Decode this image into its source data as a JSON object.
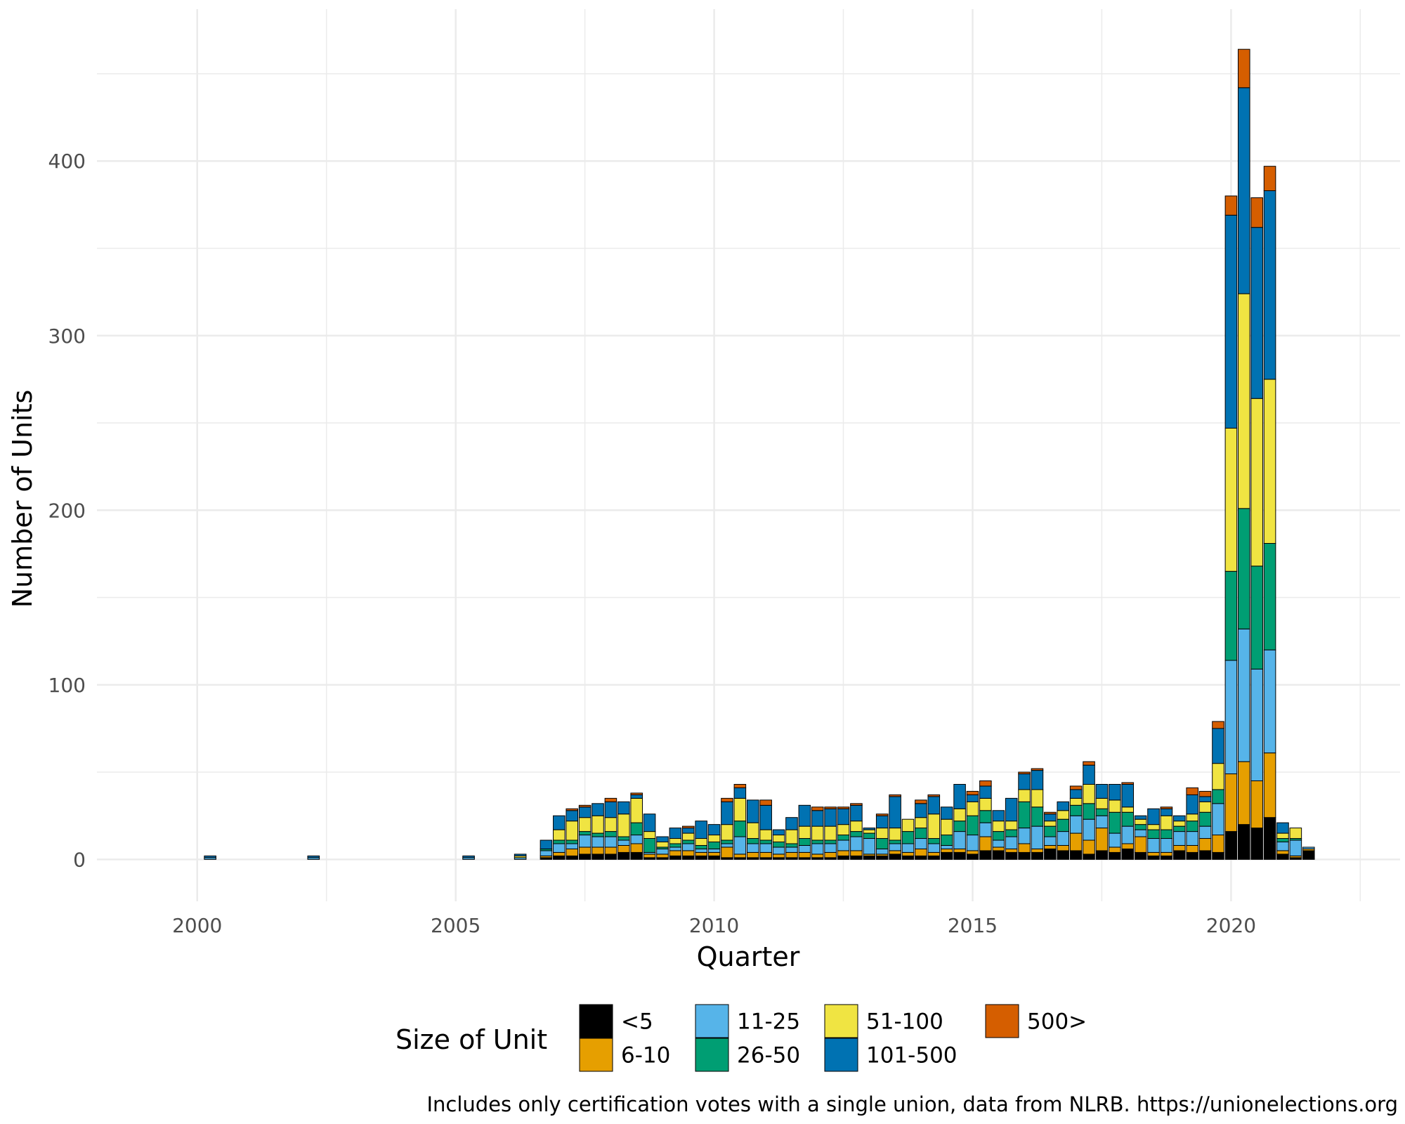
{
  "chart_data": {
    "type": "bar",
    "stacked": true,
    "xlabel": "Quarter",
    "ylabel": "Number of Units",
    "x_ticks": [
      "2000",
      "2005",
      "2010",
      "2015",
      "2020"
    ],
    "y_ticks": [
      "0",
      "100",
      "200",
      "300",
      "400"
    ],
    "xlim": [
      1998.06,
      2023.27
    ],
    "ylim": [
      -24,
      487
    ],
    "grid": true,
    "legend": {
      "title": "Size of Unit",
      "position": "bottom",
      "entries": [
        "<5",
        "6-10",
        "11-25",
        "26-50",
        "51-100",
        "101-500",
        "500>"
      ]
    },
    "caption": "Includes only certification votes with a single union, data from NLRB. https://unionelections.org",
    "colors": {
      "<5": "#000000",
      "6-10": "#E69F00",
      "11-25": "#56B4E9",
      "26-50": "#009E73",
      "51-100": "#F0E442",
      "101-500": "#0072B2",
      "500>": "#D55E00"
    },
    "x": [
      2000.25,
      2002.25,
      2005.25,
      2006.25,
      2006.75,
      2007.0,
      2007.25,
      2007.5,
      2007.75,
      2008.0,
      2008.25,
      2008.5,
      2008.75,
      2009.0,
      2009.25,
      2009.5,
      2009.75,
      2010.0,
      2010.25,
      2010.5,
      2010.75,
      2011.0,
      2011.25,
      2011.5,
      2011.75,
      2012.0,
      2012.25,
      2012.5,
      2012.75,
      2013.0,
      2013.25,
      2013.5,
      2013.75,
      2014.0,
      2014.25,
      2014.5,
      2014.75,
      2015.0,
      2015.25,
      2015.5,
      2015.75,
      2016.0,
      2016.25,
      2016.5,
      2016.75,
      2017.0,
      2017.25,
      2017.5,
      2017.75,
      2018.0,
      2018.25,
      2018.5,
      2018.75,
      2019.0,
      2019.25,
      2019.5,
      2019.75,
      2020.0,
      2020.25,
      2020.5,
      2020.75,
      2021.0,
      2021.25,
      2021.5
    ],
    "series": [
      {
        "name": "<5",
        "values": [
          0,
          0,
          0,
          0,
          1,
          2,
          2,
          3,
          3,
          3,
          4,
          4,
          1,
          1,
          2,
          2,
          2,
          2,
          1,
          1,
          1,
          1,
          1,
          1,
          1,
          1,
          1,
          2,
          2,
          2,
          2,
          3,
          2,
          2,
          2,
          4,
          4,
          3,
          5,
          5,
          4,
          4,
          4,
          6,
          5,
          5,
          3,
          5,
          4,
          6,
          4,
          2,
          2,
          5,
          4,
          5,
          4,
          16,
          20,
          18,
          24,
          3,
          1,
          5
        ]
      },
      {
        "name": "6-10",
        "values": [
          0,
          0,
          0,
          0,
          1,
          2,
          4,
          4,
          4,
          4,
          4,
          5,
          2,
          2,
          3,
          3,
          2,
          2,
          6,
          2,
          3,
          3,
          2,
          3,
          3,
          2,
          3,
          3,
          3,
          1,
          1,
          2,
          2,
          4,
          2,
          2,
          2,
          2,
          8,
          2,
          2,
          5,
          2,
          2,
          3,
          10,
          8,
          13,
          3,
          3,
          9,
          2,
          2,
          3,
          4,
          7,
          10,
          33,
          36,
          27,
          37,
          2,
          1,
          1
        ]
      },
      {
        "name": "11-25",
        "values": [
          1,
          1,
          1,
          1,
          3,
          5,
          3,
          7,
          6,
          6,
          3,
          5,
          1,
          3,
          2,
          4,
          2,
          2,
          2,
          10,
          5,
          5,
          4,
          3,
          4,
          6,
          5,
          6,
          8,
          9,
          3,
          4,
          5,
          6,
          5,
          2,
          10,
          9,
          8,
          4,
          7,
          9,
          13,
          5,
          8,
          10,
          12,
          7,
          8,
          10,
          4,
          8,
          8,
          8,
          8,
          7,
          18,
          65,
          76,
          64,
          59,
          5,
          9,
          1
        ]
      },
      {
        "name": "26-50",
        "values": [
          0,
          0,
          0,
          0,
          1,
          2,
          2,
          2,
          2,
          3,
          2,
          7,
          8,
          1,
          2,
          2,
          2,
          4,
          2,
          9,
          3,
          2,
          3,
          2,
          4,
          2,
          2,
          3,
          3,
          3,
          6,
          2,
          7,
          6,
          3,
          6,
          6,
          11,
          7,
          5,
          4,
          15,
          11,
          6,
          7,
          6,
          9,
          4,
          12,
          8,
          3,
          5,
          5,
          3,
          6,
          8,
          8,
          51,
          69,
          59,
          61,
          2,
          1,
          0
        ]
      },
      {
        "name": "51-100",
        "values": [
          0,
          0,
          0,
          1,
          0,
          6,
          11,
          8,
          10,
          8,
          13,
          14,
          4,
          3,
          3,
          4,
          4,
          4,
          9,
          13,
          9,
          6,
          4,
          8,
          7,
          8,
          8,
          6,
          6,
          2,
          6,
          7,
          7,
          6,
          14,
          9,
          7,
          8,
          7,
          6,
          5,
          7,
          10,
          3,
          5,
          4,
          11,
          6,
          7,
          3,
          3,
          3,
          8,
          3,
          4,
          6,
          15,
          82,
          123,
          96,
          94,
          3,
          6,
          0
        ]
      },
      {
        "name": "101-500",
        "values": [
          1,
          1,
          1,
          1,
          5,
          8,
          6,
          6,
          7,
          9,
          7,
          2,
          10,
          3,
          6,
          3,
          10,
          6,
          13,
          6,
          13,
          14,
          3,
          7,
          12,
          9,
          10,
          9,
          9,
          1,
          7,
          18,
          0,
          8,
          10,
          7,
          14,
          4,
          7,
          6,
          13,
          9,
          11,
          4,
          5,
          5,
          11,
          8,
          9,
          13,
          2,
          9,
          4,
          3,
          11,
          3,
          20,
          122,
          118,
          98,
          108,
          6,
          0,
          0
        ]
      },
      {
        "name": "500>",
        "values": [
          0,
          0,
          0,
          0,
          0,
          0,
          1,
          1,
          0,
          2,
          0,
          1,
          0,
          0,
          0,
          1,
          0,
          0,
          2,
          2,
          0,
          3,
          0,
          0,
          0,
          2,
          1,
          1,
          1,
          0,
          1,
          1,
          0,
          2,
          1,
          0,
          0,
          2,
          3,
          0,
          0,
          1,
          1,
          1,
          0,
          2,
          2,
          0,
          0,
          1,
          0,
          0,
          1,
          0,
          4,
          3,
          4,
          11,
          22,
          17,
          14,
          0,
          0,
          0
        ]
      }
    ]
  }
}
